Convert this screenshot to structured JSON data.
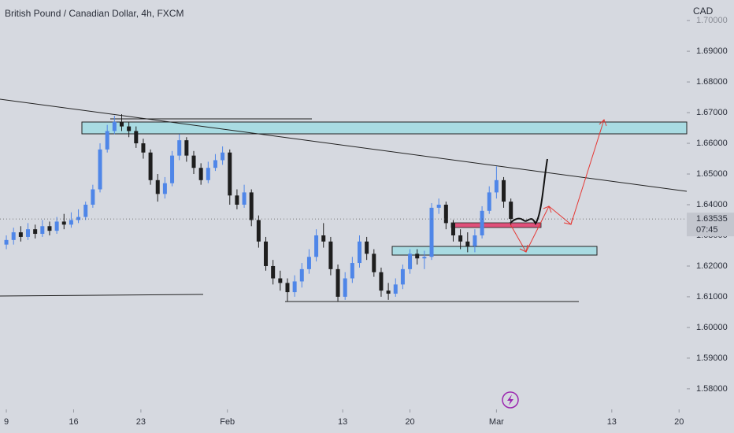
{
  "chart_data": {
    "type": "candlestick",
    "title": "British Pound / Canadian Dollar, 4h, FXCM",
    "currency": "CAD",
    "up_color": "#4f86e8",
    "down_color": "#1e1e1e",
    "x": [
      0,
      0.75,
      1.5,
      2.25,
      3,
      3.75,
      4.5,
      5.25,
      6,
      6.75,
      7.5,
      8.25,
      9,
      9.75,
      10.5,
      11.25,
      12,
      12.75,
      13.5,
      14.25,
      15,
      15.75,
      16.5,
      17.25,
      18,
      18.75,
      19.5,
      20.25,
      21,
      21.75,
      22.5,
      23.25,
      24,
      24.75,
      25.5,
      26.25,
      27,
      27.75,
      28.5,
      29.25,
      30,
      30.75,
      31.5,
      32.25,
      33,
      33.75,
      34.5,
      35.25,
      36,
      36.75,
      37.5,
      38.25,
      39,
      39.75,
      40.5,
      41.25,
      42,
      42.75,
      43.5,
      44.25,
      45,
      45.75,
      46.5,
      47.25,
      48,
      48.75,
      49.5,
      50.25,
      51,
      51.75,
      52.5
    ],
    "open": [
      1.627,
      1.6285,
      1.631,
      1.6295,
      1.632,
      1.6305,
      1.633,
      1.6315,
      1.6345,
      1.6335,
      1.635,
      1.636,
      1.64,
      1.645,
      1.658,
      1.664,
      1.667,
      1.6655,
      1.664,
      1.66,
      1.657,
      1.648,
      1.6435,
      1.647,
      1.656,
      1.661,
      1.656,
      1.652,
      1.648,
      1.652,
      1.6545,
      1.657,
      1.643,
      1.64,
      1.644,
      1.635,
      1.628,
      1.62,
      1.616,
      1.6145,
      1.6115,
      1.615,
      1.619,
      1.623,
      1.63,
      1.628,
      1.619,
      1.61,
      1.616,
      1.621,
      1.628,
      1.624,
      1.618,
      1.612,
      1.611,
      1.614,
      1.619,
      1.624,
      1.6225,
      1.623,
      1.639,
      1.64,
      1.634,
      1.63,
      1.628,
      1.6265,
      1.63,
      1.638,
      1.644,
      1.648,
      1.641
    ],
    "high": [
      1.63,
      1.6325,
      1.633,
      1.634,
      1.6335,
      1.635,
      1.6345,
      1.636,
      1.637,
      1.6375,
      1.6385,
      1.641,
      1.6465,
      1.66,
      1.666,
      1.669,
      1.6695,
      1.667,
      1.6655,
      1.6615,
      1.658,
      1.65,
      1.649,
      1.6575,
      1.663,
      1.662,
      1.6575,
      1.6535,
      1.654,
      1.6565,
      1.659,
      1.658,
      1.645,
      1.6465,
      1.645,
      1.6365,
      1.6295,
      1.622,
      1.6185,
      1.616,
      1.617,
      1.621,
      1.6255,
      1.632,
      1.634,
      1.6295,
      1.6205,
      1.618,
      1.623,
      1.63,
      1.6295,
      1.6255,
      1.6195,
      1.6145,
      1.616,
      1.6205,
      1.6255,
      1.6255,
      1.625,
      1.6405,
      1.642,
      1.641,
      1.635,
      1.632,
      1.631,
      1.632,
      1.6395,
      1.646,
      1.6525,
      1.649,
      1.642
    ],
    "low": [
      1.6255,
      1.627,
      1.628,
      1.6285,
      1.629,
      1.6295,
      1.63,
      1.6305,
      1.632,
      1.6325,
      1.634,
      1.635,
      1.639,
      1.644,
      1.657,
      1.663,
      1.664,
      1.662,
      1.6585,
      1.655,
      1.6465,
      1.641,
      1.642,
      1.646,
      1.6545,
      1.654,
      1.65,
      1.6465,
      1.647,
      1.651,
      1.653,
      1.64,
      1.6385,
      1.639,
      1.633,
      1.626,
      1.6185,
      1.614,
      1.612,
      1.6085,
      1.61,
      1.613,
      1.6175,
      1.6215,
      1.626,
      1.617,
      1.6085,
      1.609,
      1.6145,
      1.6195,
      1.622,
      1.6165,
      1.61,
      1.609,
      1.61,
      1.6125,
      1.6175,
      1.6205,
      1.619,
      1.622,
      1.637,
      1.632,
      1.628,
      1.6255,
      1.6245,
      1.6245,
      1.629,
      1.637,
      1.642,
      1.639,
      1.6335
    ],
    "close": [
      1.6285,
      1.631,
      1.6295,
      1.632,
      1.6305,
      1.633,
      1.6315,
      1.6345,
      1.6335,
      1.635,
      1.636,
      1.64,
      1.645,
      1.658,
      1.664,
      1.667,
      1.6655,
      1.664,
      1.66,
      1.657,
      1.648,
      1.6435,
      1.647,
      1.656,
      1.661,
      1.656,
      1.652,
      1.648,
      1.652,
      1.6545,
      1.657,
      1.643,
      1.64,
      1.644,
      1.635,
      1.628,
      1.62,
      1.616,
      1.6145,
      1.6115,
      1.615,
      1.619,
      1.623,
      1.63,
      1.628,
      1.619,
      1.61,
      1.616,
      1.621,
      1.628,
      1.624,
      1.618,
      1.612,
      1.611,
      1.614,
      1.619,
      1.624,
      1.6225,
      1.623,
      1.639,
      1.64,
      1.634,
      1.63,
      1.628,
      1.6265,
      1.63,
      1.638,
      1.644,
      1.648,
      1.641,
      1.63535
    ],
    "xlim": [
      -0.66,
      70.8
    ],
    "ylim": [
      1.5733,
      1.7067
    ],
    "xticks": [
      {
        "value": 0,
        "label": "9"
      },
      {
        "value": 7,
        "label": "16"
      },
      {
        "value": 14,
        "label": "23"
      },
      {
        "value": 23,
        "label": "Feb"
      },
      {
        "value": 35,
        "label": "13"
      },
      {
        "value": 42,
        "label": "20"
      },
      {
        "value": 51,
        "label": "Mar"
      },
      {
        "value": 63,
        "label": "13"
      },
      {
        "value": 70,
        "label": "20"
      }
    ],
    "yticks": [
      {
        "value": 1.58,
        "label": "1.58000"
      },
      {
        "value": 1.59,
        "label": "1.59000"
      },
      {
        "value": 1.6,
        "label": "1.60000"
      },
      {
        "value": 1.61,
        "label": "1.61000"
      },
      {
        "value": 1.62,
        "label": "1.62000"
      },
      {
        "value": 1.63,
        "label": "1.63000"
      },
      {
        "value": 1.64,
        "label": "1.64000"
      },
      {
        "value": 1.65,
        "label": "1.65000"
      },
      {
        "value": 1.66,
        "label": "1.66000"
      },
      {
        "value": 1.67,
        "label": "1.67000"
      },
      {
        "value": 1.68,
        "label": "1.68000"
      },
      {
        "value": 1.69,
        "label": "1.69000"
      },
      {
        "value": 1.7,
        "label": "1.70000"
      }
    ],
    "last_price": 1.63535,
    "countdown": "07:45",
    "grid": false
  }
}
